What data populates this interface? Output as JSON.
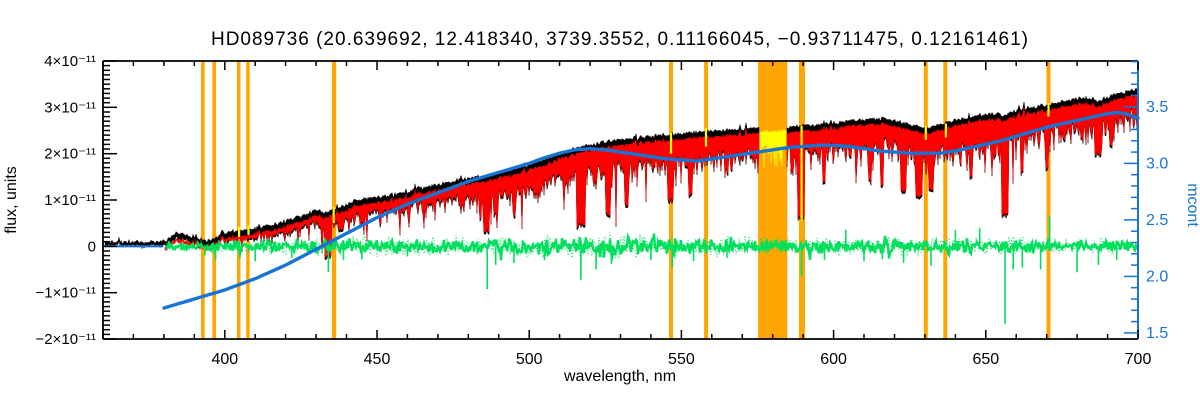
{
  "chart_data": {
    "type": "line",
    "title": "HD089736   (20.639692, 12.418340, 3739.3552, 0.11166045, −0.93711475, 0.12161461)",
    "xlabel": "wavelength, nm",
    "ylabel_left": "flux, units",
    "ylabel_right": "mcont",
    "xlim_nm": [
      360,
      700
    ],
    "ylim_left_flux_1e11": [
      -2,
      4
    ],
    "ylim_right_mcont": [
      1.446,
      3.906
    ],
    "x_major_ticks": [
      400,
      450,
      500,
      550,
      600,
      650,
      700
    ],
    "x_minor_step_nm": 10,
    "y_left_major_ticks_1e11": [
      -2,
      -1,
      0,
      1,
      2,
      3,
      4
    ],
    "y_left_tick_labels": [
      "−2×10⁻¹¹",
      "−1×10⁻¹¹",
      "0",
      "1×10⁻¹¹",
      "2×10⁻¹¹",
      "3×10⁻¹¹",
      "4×10⁻¹¹"
    ],
    "y_left_minor_step": 0.1,
    "y_right_major_ticks": [
      1.5,
      2.0,
      2.5,
      3.0,
      3.5
    ],
    "y_right_tick_labels": [
      "1.5",
      "2.0",
      "2.5",
      "3.0",
      "3.5"
    ],
    "y_right_minor_step": 0.1,
    "grid": false,
    "legend": "none",
    "colors": {
      "background": "#ffffff",
      "axis": "#000000",
      "right_axis": "#1874d2",
      "observed": "#000000",
      "template": "#ff0000",
      "residual": "#00e05c",
      "masked_points": "#ffff00",
      "mask_band": "#ffa500",
      "continuum": "#1874d2"
    },
    "noise_seed": 11,
    "mask_regions_nm": [
      {
        "center": 392.8,
        "width": 1.2
      },
      {
        "center": 396.5,
        "width": 1.2
      },
      {
        "center": 404.6,
        "width": 1.1
      },
      {
        "center": 407.6,
        "width": 1.1
      },
      {
        "center": 435.9,
        "width": 1.4
      },
      {
        "center": 546.6,
        "width": 1.3
      },
      {
        "center": 558.1,
        "width": 1.3
      },
      {
        "center": 580.0,
        "width": 9.6
      },
      {
        "center": 589.6,
        "width": 2.0
      },
      {
        "center": 630.3,
        "width": 1.3
      },
      {
        "center": 636.7,
        "width": 1.3
      },
      {
        "center": 670.6,
        "width": 1.3
      }
    ],
    "series": {
      "observed_black": {
        "start_nm": 360.4,
        "top_envelope": [
          [
            360,
            0.1
          ],
          [
            365,
            0.09
          ],
          [
            370,
            0.12
          ],
          [
            374,
            0.08
          ],
          [
            378,
            0.1
          ],
          [
            381,
            0.13
          ],
          [
            384,
            0.3
          ],
          [
            387,
            0.25
          ],
          [
            390,
            0.22
          ],
          [
            393,
            0.13
          ],
          [
            395,
            0.12
          ],
          [
            397,
            0.16
          ],
          [
            399,
            0.28
          ],
          [
            402,
            0.32
          ],
          [
            406,
            0.34
          ],
          [
            410,
            0.38
          ],
          [
            414,
            0.44
          ],
          [
            418,
            0.5
          ],
          [
            422,
            0.58
          ],
          [
            426,
            0.66
          ],
          [
            430,
            0.78
          ],
          [
            433,
            0.72
          ],
          [
            436,
            0.78
          ],
          [
            440,
            0.92
          ],
          [
            444,
            1.0
          ],
          [
            448,
            1.04
          ],
          [
            452,
            1.08
          ],
          [
            456,
            1.12
          ],
          [
            460,
            1.18
          ],
          [
            464,
            1.25
          ],
          [
            468,
            1.31
          ],
          [
            472,
            1.36
          ],
          [
            476,
            1.42
          ],
          [
            480,
            1.47
          ],
          [
            484,
            1.5
          ],
          [
            488,
            1.55
          ],
          [
            492,
            1.62
          ],
          [
            496,
            1.68
          ],
          [
            500,
            1.76
          ],
          [
            504,
            1.86
          ],
          [
            508,
            1.95
          ],
          [
            512,
            2.05
          ],
          [
            516,
            2.12
          ],
          [
            520,
            2.18
          ],
          [
            524,
            2.24
          ],
          [
            528,
            2.29
          ],
          [
            532,
            2.32
          ],
          [
            536,
            2.34
          ],
          [
            540,
            2.36
          ],
          [
            544,
            2.39
          ],
          [
            548,
            2.42
          ],
          [
            552,
            2.44
          ],
          [
            556,
            2.46
          ],
          [
            560,
            2.48
          ],
          [
            564,
            2.5
          ],
          [
            568,
            2.52
          ],
          [
            572,
            2.54
          ],
          [
            576,
            2.56
          ],
          [
            580,
            2.57
          ],
          [
            584,
            2.58
          ],
          [
            588,
            2.6
          ],
          [
            592,
            2.61
          ],
          [
            596,
            2.63
          ],
          [
            600,
            2.66
          ],
          [
            604,
            2.69
          ],
          [
            608,
            2.72
          ],
          [
            612,
            2.74
          ],
          [
            616,
            2.74
          ],
          [
            620,
            2.72
          ],
          [
            624,
            2.64
          ],
          [
            628,
            2.58
          ],
          [
            631,
            2.56
          ],
          [
            634,
            2.62
          ],
          [
            638,
            2.68
          ],
          [
            642,
            2.74
          ],
          [
            646,
            2.8
          ],
          [
            650,
            2.85
          ],
          [
            654,
            2.87
          ],
          [
            656,
            2.82
          ],
          [
            658,
            2.88
          ],
          [
            662,
            2.96
          ],
          [
            666,
            3.01
          ],
          [
            670,
            3.05
          ],
          [
            674,
            3.11
          ],
          [
            678,
            3.16
          ],
          [
            682,
            3.21
          ],
          [
            685,
            3.2
          ],
          [
            687,
            3.12
          ],
          [
            689,
            3.2
          ],
          [
            692,
            3.28
          ],
          [
            695,
            3.33
          ],
          [
            698,
            3.38
          ],
          [
            700,
            3.4
          ]
        ],
        "band_thickness": [
          [
            360,
            0.1
          ],
          [
            380,
            0.15
          ],
          [
            400,
            0.3
          ],
          [
            420,
            0.45
          ],
          [
            440,
            0.6
          ],
          [
            460,
            0.7
          ],
          [
            480,
            0.85
          ],
          [
            500,
            0.95
          ],
          [
            520,
            1.1
          ],
          [
            540,
            1.15
          ],
          [
            560,
            1.1
          ],
          [
            580,
            1.05
          ],
          [
            600,
            1.05
          ],
          [
            620,
            1.1
          ],
          [
            640,
            1.15
          ],
          [
            660,
            1.2
          ],
          [
            680,
            1.15
          ],
          [
            700,
            1.05
          ]
        ],
        "absorption_lines": [
          [
            393.4,
            1.2,
            -0.02
          ],
          [
            396.9,
            1.2,
            0.0
          ],
          [
            404.7,
            0.8,
            0.12
          ],
          [
            407.8,
            0.8,
            0.15
          ],
          [
            410.2,
            0.8,
            0.1
          ],
          [
            422.0,
            0.7,
            0.2
          ],
          [
            434.0,
            1.2,
            -0.3
          ],
          [
            438.3,
            0.8,
            0.25
          ],
          [
            445.0,
            0.6,
            0.4
          ],
          [
            486.1,
            1.0,
            0.25
          ],
          [
            489.0,
            0.6,
            0.6
          ],
          [
            495.0,
            0.5,
            0.7
          ],
          [
            517.0,
            1.5,
            0.35
          ],
          [
            526.0,
            0.8,
            0.6
          ],
          [
            532.0,
            0.6,
            0.8
          ],
          [
            546.6,
            0.8,
            0.9
          ],
          [
            553.0,
            0.6,
            1.0
          ],
          [
            589.4,
            1.2,
            0.55
          ],
          [
            597.0,
            0.5,
            1.3
          ],
          [
            612.0,
            0.6,
            1.3
          ],
          [
            616.0,
            0.5,
            1.25
          ],
          [
            623.0,
            1.0,
            1.1
          ],
          [
            628.0,
            1.2,
            1.0
          ],
          [
            632.0,
            0.8,
            1.1
          ],
          [
            645.0,
            0.5,
            1.4
          ],
          [
            656.3,
            1.0,
            0.6
          ],
          [
            662.0,
            0.5,
            1.5
          ],
          [
            670.0,
            0.5,
            1.6
          ],
          [
            686.9,
            1.2,
            1.9
          ],
          [
            691.0,
            0.5,
            2.1
          ]
        ]
      },
      "template_red": {
        "start_nm": 380.2,
        "top_offset": 0.11,
        "bottom_offset": 0.05
      },
      "residual_green": {
        "start_nm": 380.5,
        "amplitude": [
          [
            380,
            0.06
          ],
          [
            390,
            0.09
          ],
          [
            400,
            0.12
          ],
          [
            420,
            0.14
          ],
          [
            440,
            0.16
          ],
          [
            460,
            0.17
          ],
          [
            480,
            0.18
          ],
          [
            500,
            0.2
          ],
          [
            520,
            0.23
          ],
          [
            540,
            0.21
          ],
          [
            560,
            0.18
          ],
          [
            580,
            0.15
          ],
          [
            600,
            0.17
          ],
          [
            620,
            0.17
          ],
          [
            640,
            0.15
          ],
          [
            660,
            0.16
          ],
          [
            680,
            0.15
          ],
          [
            700,
            0.13
          ]
        ],
        "spikes": [
          [
            393.5,
            -0.2
          ],
          [
            397,
            -0.3
          ],
          [
            405,
            -0.25
          ],
          [
            410,
            -0.32
          ],
          [
            422,
            -0.25
          ],
          [
            434,
            -0.55
          ],
          [
            439,
            -0.3
          ],
          [
            445,
            -0.28
          ],
          [
            460,
            -0.22
          ],
          [
            486.2,
            -0.92
          ],
          [
            489,
            -0.4
          ],
          [
            495,
            -0.36
          ],
          [
            505,
            -0.3
          ],
          [
            517,
            -0.72
          ],
          [
            522,
            -0.5
          ],
          [
            527,
            -0.38
          ],
          [
            540,
            -0.3
          ],
          [
            547,
            -0.45
          ],
          [
            554,
            -0.32
          ],
          [
            565,
            -0.25
          ],
          [
            589.5,
            -0.65
          ],
          [
            597,
            -0.3
          ],
          [
            604,
            0.36
          ],
          [
            610,
            -0.32
          ],
          [
            616,
            -0.28
          ],
          [
            623,
            -0.36
          ],
          [
            632,
            -0.42
          ],
          [
            640,
            0.35
          ],
          [
            648,
            0.4
          ],
          [
            656.3,
            -1.68
          ],
          [
            659,
            -0.5
          ],
          [
            662,
            -0.46
          ],
          [
            668,
            -0.5
          ],
          [
            671,
            0.65
          ],
          [
            680,
            -0.56
          ],
          [
            687,
            -0.4
          ],
          [
            693,
            -0.3
          ],
          [
            700,
            0.3
          ]
        ]
      },
      "masked_yellow": {
        "band_nm": [
          575.6,
          584.4
        ],
        "band_top_drop": 0.08,
        "band_depth": [
          0.3,
          0.85
        ],
        "segments": [
          [
            404.7,
            0.2,
            0.42
          ],
          [
            407.8,
            0.25,
            0.45
          ],
          [
            435.8,
            0.5,
            0.85
          ],
          [
            546.6,
            2.0,
            2.45
          ],
          [
            558.1,
            2.15,
            2.55
          ],
          [
            589.5,
            0.55,
            2.6
          ],
          [
            630.3,
            2.3,
            2.6
          ],
          [
            636.9,
            2.35,
            2.65
          ],
          [
            670.6,
            2.8,
            3.1
          ]
        ]
      },
      "mcont_blue": {
        "flat_segment": {
          "nm": [
            360.4,
            379.8
          ],
          "flux_level_1e11": 0
        },
        "points": [
          [
            380,
            1.72
          ],
          [
            385,
            1.76
          ],
          [
            390,
            1.8
          ],
          [
            395,
            1.84
          ],
          [
            400,
            1.88
          ],
          [
            405,
            1.93
          ],
          [
            410,
            1.98
          ],
          [
            415,
            2.04
          ],
          [
            420,
            2.1
          ],
          [
            425,
            2.17
          ],
          [
            430,
            2.24
          ],
          [
            435,
            2.31
          ],
          [
            440,
            2.38
          ],
          [
            445,
            2.45
          ],
          [
            450,
            2.52
          ],
          [
            455,
            2.58
          ],
          [
            460,
            2.64
          ],
          [
            465,
            2.69
          ],
          [
            470,
            2.74
          ],
          [
            475,
            2.79
          ],
          [
            480,
            2.84
          ],
          [
            485,
            2.88
          ],
          [
            490,
            2.92
          ],
          [
            495,
            2.96
          ],
          [
            500,
            3.0
          ],
          [
            505,
            3.05
          ],
          [
            510,
            3.09
          ],
          [
            515,
            3.12
          ],
          [
            520,
            3.13
          ],
          [
            525,
            3.12
          ],
          [
            530,
            3.1
          ],
          [
            535,
            3.08
          ],
          [
            540,
            3.06
          ],
          [
            545,
            3.04
          ],
          [
            550,
            3.03
          ],
          [
            555,
            3.02
          ],
          [
            560,
            3.04
          ],
          [
            565,
            3.06
          ],
          [
            570,
            3.08
          ],
          [
            575,
            3.1
          ],
          [
            580,
            3.12
          ],
          [
            585,
            3.14
          ],
          [
            590,
            3.15
          ],
          [
            595,
            3.16
          ],
          [
            600,
            3.16
          ],
          [
            605,
            3.15
          ],
          [
            610,
            3.13
          ],
          [
            615,
            3.11
          ],
          [
            620,
            3.1
          ],
          [
            625,
            3.09
          ],
          [
            630,
            3.09
          ],
          [
            635,
            3.09
          ],
          [
            640,
            3.11
          ],
          [
            645,
            3.14
          ],
          [
            650,
            3.17
          ],
          [
            655,
            3.2
          ],
          [
            660,
            3.24
          ],
          [
            665,
            3.28
          ],
          [
            670,
            3.32
          ],
          [
            675,
            3.35
          ],
          [
            680,
            3.38
          ],
          [
            685,
            3.41
          ],
          [
            690,
            3.44
          ],
          [
            693,
            3.45
          ],
          [
            696,
            3.44
          ],
          [
            700,
            3.4
          ]
        ]
      }
    }
  }
}
